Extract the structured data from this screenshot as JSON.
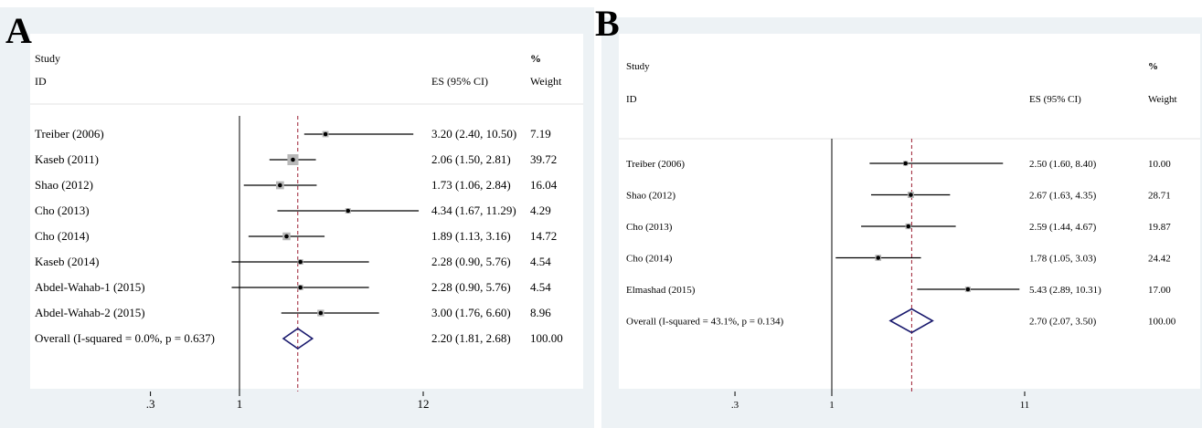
{
  "chart_data": [
    {
      "panel_label": "A",
      "type": "forest",
      "header": {
        "study": "Study",
        "id": "ID",
        "es": "ES (95% CI)",
        "pct": "%",
        "weight": "Weight"
      },
      "x_scale": "log",
      "x_ticks": [
        {
          "value": 0.3,
          "label": ".3"
        },
        {
          "value": 1,
          "label": "1"
        },
        {
          "value": 12,
          "label": "12"
        }
      ],
      "null_line": 1,
      "studies": [
        {
          "label": "Treiber (2006)",
          "es": 3.2,
          "lower": 2.4,
          "upper": 10.5,
          "es_text": "3.20 (2.40, 10.50)",
          "weight_text": "7.19",
          "weight": 7.19
        },
        {
          "label": "Kaseb (2011)",
          "es": 2.06,
          "lower": 1.5,
          "upper": 2.81,
          "es_text": "2.06 (1.50, 2.81)",
          "weight_text": "39.72",
          "weight": 39.72
        },
        {
          "label": "Shao (2012)",
          "es": 1.73,
          "lower": 1.06,
          "upper": 2.84,
          "es_text": "1.73 (1.06, 2.84)",
          "weight_text": "16.04",
          "weight": 16.04
        },
        {
          "label": "Cho (2013)",
          "es": 4.34,
          "lower": 1.67,
          "upper": 11.29,
          "es_text": "4.34 (1.67, 11.29)",
          "weight_text": "4.29",
          "weight": 4.29
        },
        {
          "label": "Cho (2014)",
          "es": 1.89,
          "lower": 1.13,
          "upper": 3.16,
          "es_text": "1.89 (1.13, 3.16)",
          "weight_text": "14.72",
          "weight": 14.72
        },
        {
          "label": "Kaseb (2014)",
          "es": 2.28,
          "lower": 0.9,
          "upper": 5.76,
          "es_text": "2.28 (0.90, 5.76)",
          "weight_text": "4.54",
          "weight": 4.54
        },
        {
          "label": "Abdel-Wahab-1 (2015)",
          "es": 2.28,
          "lower": 0.9,
          "upper": 5.76,
          "es_text": "2.28 (0.90, 5.76)",
          "weight_text": "4.54",
          "weight": 4.54
        },
        {
          "label": "Abdel-Wahab-2 (2015)",
          "es": 3.0,
          "lower": 1.76,
          "upper": 6.6,
          "es_text": "3.00 (1.76, 6.60)",
          "weight_text": "8.96",
          "weight": 8.96
        }
      ],
      "overall": {
        "label": "Overall  (I-squared = 0.0%, p = 0.637)",
        "es": 2.2,
        "lower": 1.81,
        "upper": 2.68,
        "es_text": "2.20 (1.81, 2.68)",
        "weight_text": "100.00"
      },
      "colors": {
        "diamond": "#1a1a6e",
        "overall_line": "#9b1b30",
        "box": "#b8b8b8"
      }
    },
    {
      "panel_label": "B",
      "type": "forest",
      "header": {
        "study": "Study",
        "id": "ID",
        "es": "ES (95% CI)",
        "pct": "%",
        "weight": "Weight"
      },
      "x_scale": "log",
      "x_ticks": [
        {
          "value": 0.3,
          "label": ".3"
        },
        {
          "value": 1,
          "label": "1"
        },
        {
          "value": 11,
          "label": "11"
        }
      ],
      "null_line": 1,
      "studies": [
        {
          "label": "Treiber (2006)",
          "es": 2.5,
          "lower": 1.6,
          "upper": 8.4,
          "es_text": "2.50 (1.60, 8.40)",
          "weight_text": "10.00",
          "weight": 10.0
        },
        {
          "label": "Shao (2012)",
          "es": 2.67,
          "lower": 1.63,
          "upper": 4.35,
          "es_text": "2.67 (1.63, 4.35)",
          "weight_text": "28.71",
          "weight": 28.71
        },
        {
          "label": "Cho (2013)",
          "es": 2.59,
          "lower": 1.44,
          "upper": 4.67,
          "es_text": "2.59 (1.44, 4.67)",
          "weight_text": "19.87",
          "weight": 19.87
        },
        {
          "label": "Cho (2014)",
          "es": 1.78,
          "lower": 1.05,
          "upper": 3.03,
          "es_text": "1.78 (1.05, 3.03)",
          "weight_text": "24.42",
          "weight": 24.42
        },
        {
          "label": "Elmashad (2015)",
          "es": 5.43,
          "lower": 2.89,
          "upper": 10.31,
          "es_text": "5.43 (2.89, 10.31)",
          "weight_text": "17.00",
          "weight": 17.0
        }
      ],
      "overall": {
        "label": "Overall  (I-squared = 43.1%, p = 0.134)",
        "es": 2.7,
        "lower": 2.07,
        "upper": 3.5,
        "es_text": "2.70 (2.07, 3.50)",
        "weight_text": "100.00"
      },
      "colors": {
        "diamond": "#1a1a6e",
        "overall_line": "#9b1b30",
        "box": "#b8b8b8"
      }
    }
  ]
}
